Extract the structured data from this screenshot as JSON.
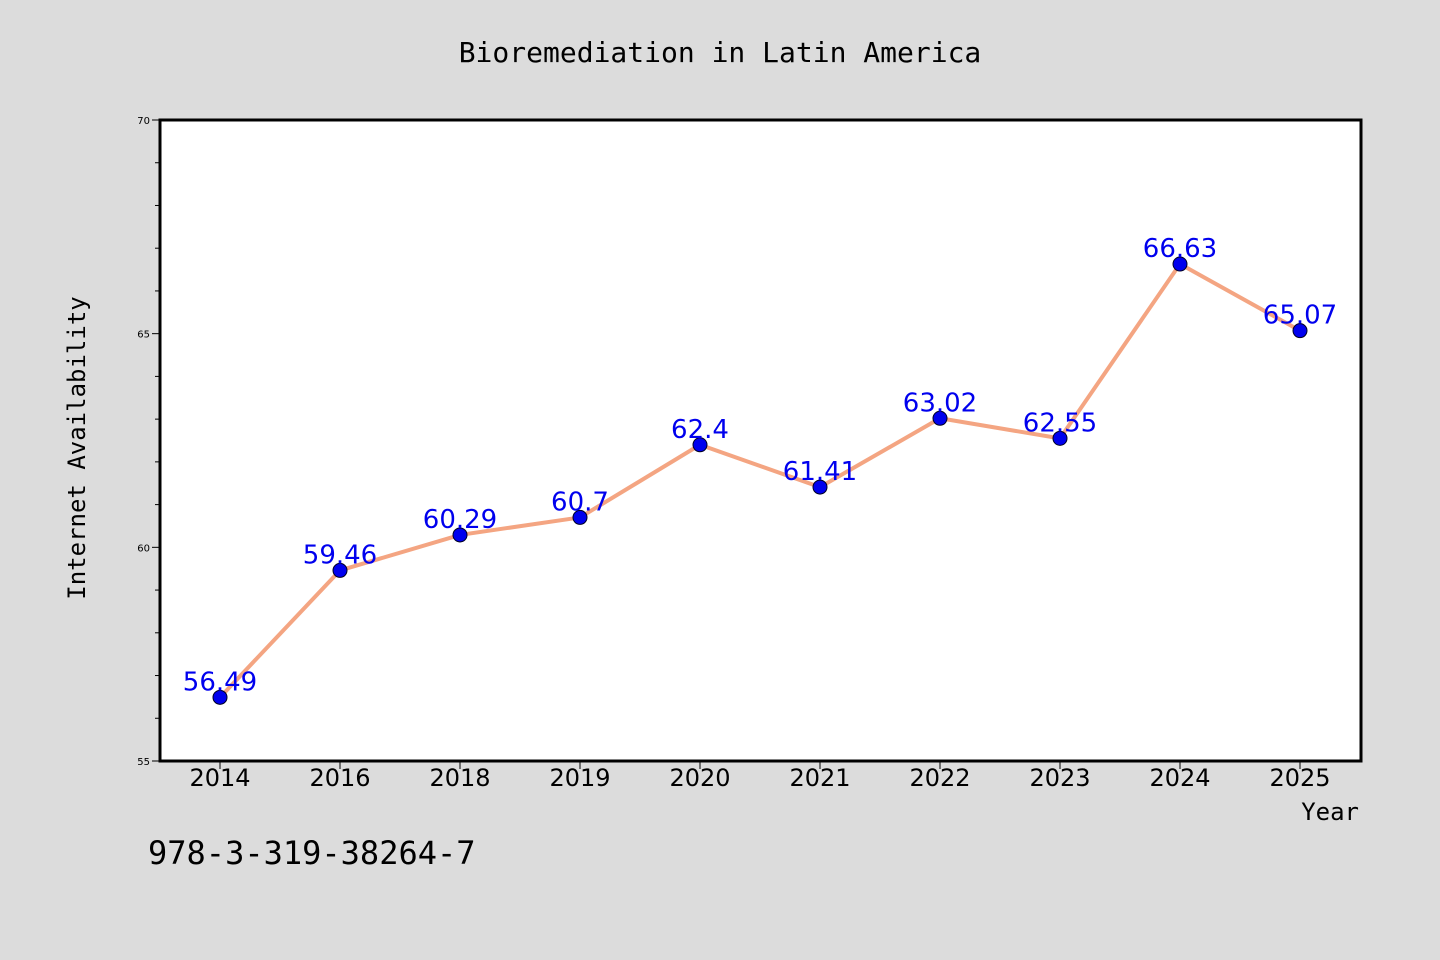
{
  "chart_data": {
    "type": "line",
    "title": "Bioremediation in Latin America",
    "xlabel": "Year",
    "ylabel": "Internet Availability",
    "categories": [
      "2014",
      "2016",
      "2018",
      "2019",
      "2020",
      "2021",
      "2022",
      "2023",
      "2024",
      "2025"
    ],
    "series": [
      {
        "values": [
          56.49,
          59.46,
          60.29,
          60.7,
          62.4,
          61.41,
          63.02,
          62.55,
          66.63,
          65.07
        ],
        "labels": [
          "56.49",
          "59.46",
          "60.29",
          "60.7",
          "62.4",
          "61.41",
          "63.02",
          "62.55",
          "66.63",
          "65.07"
        ]
      }
    ],
    "ylim": [
      55,
      70
    ],
    "yticks": [
      "55",
      "60",
      "65",
      "70"
    ],
    "grid": false,
    "legend": "none",
    "colors": {
      "line": "#f4a582",
      "marker": "#0000ee",
      "label": "#0000ee",
      "background": "#dcdcdc",
      "plot_background": "#ffffff"
    }
  },
  "footer": {
    "code": "978-3-319-38264-7"
  }
}
